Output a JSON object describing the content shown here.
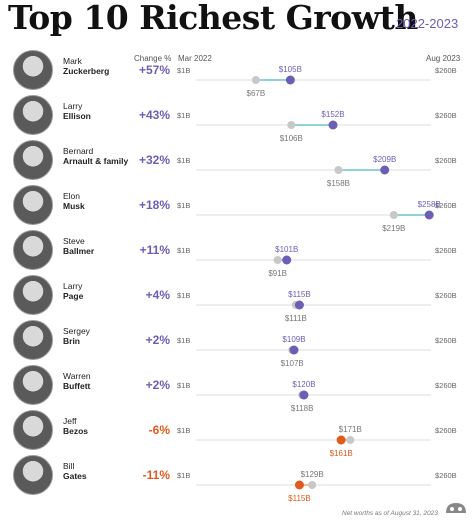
{
  "header": {
    "title": "Top 10 Richest Growth",
    "years": "2022-2023",
    "col_change": "Change %",
    "col_start": "Mar 2022",
    "col_end": "Aug 2023"
  },
  "axis_labels": {
    "min": "$1B",
    "max": "$260B"
  },
  "footer": "Net worths as of August 31, 2023",
  "colors": {
    "positive": "#6b5fb5",
    "negative": "#e05a1e",
    "start": "#c8c8c8",
    "axis": "#dddddd"
  },
  "rows": [
    {
      "first": "Mark",
      "last": "Zuckerberg",
      "pct": "+57%",
      "sign": "pos",
      "start_label": "$67B",
      "end_label": "$105B"
    },
    {
      "first": "Larry",
      "last": "Ellison",
      "pct": "+43%",
      "sign": "pos",
      "start_label": "$106B",
      "end_label": "$152B"
    },
    {
      "first": "Bernard",
      "last": "Arnault & family",
      "pct": "+32%",
      "sign": "pos",
      "start_label": "$158B",
      "end_label": "$209B"
    },
    {
      "first": "Elon",
      "last": "Musk",
      "pct": "+18%",
      "sign": "pos",
      "start_label": "$219B",
      "end_label": "$258B"
    },
    {
      "first": "Steve",
      "last": "Ballmer",
      "pct": "+11%",
      "sign": "pos",
      "start_label": "$91B",
      "end_label": "$101B"
    },
    {
      "first": "Larry",
      "last": "Page",
      "pct": "+4%",
      "sign": "pos",
      "start_label": "$111B",
      "end_label": "$115B"
    },
    {
      "first": "Sergey",
      "last": "Brin",
      "pct": "+2%",
      "sign": "pos",
      "start_label": "$107B",
      "end_label": "$109B"
    },
    {
      "first": "Warren",
      "last": "Buffett",
      "pct": "+2%",
      "sign": "pos",
      "start_label": "$118B",
      "end_label": "$120B"
    },
    {
      "first": "Jeff",
      "last": "Bezos",
      "pct": "-6%",
      "sign": "neg",
      "start_label": "$171B",
      "end_label": "$161B"
    },
    {
      "first": "Bill",
      "last": "Gates",
      "pct": "-11%",
      "sign": "neg",
      "start_label": "$129B",
      "end_label": "$115B"
    }
  ],
  "chart_data": {
    "type": "dumbbell",
    "title": "Top 10 Richest Growth",
    "subtitle": "2022-2023",
    "xlim": [
      1,
      260
    ],
    "unit": "$B",
    "series": [
      {
        "name": "Mar 2022",
        "values": [
          67,
          106,
          158,
          219,
          91,
          111,
          107,
          118,
          171,
          129
        ]
      },
      {
        "name": "Aug 2023",
        "values": [
          105,
          152,
          209,
          258,
          101,
          115,
          109,
          120,
          161,
          115
        ]
      }
    ],
    "categories": [
      "Mark Zuckerberg",
      "Larry Ellison",
      "Bernard Arnault & family",
      "Elon Musk",
      "Steve Ballmer",
      "Larry Page",
      "Sergey Brin",
      "Warren Buffett",
      "Jeff Bezos",
      "Bill Gates"
    ],
    "change_pct": [
      "+57%",
      "+43%",
      "+32%",
      "+18%",
      "+11%",
      "+4%",
      "+2%",
      "+2%",
      "-6%",
      "-11%"
    ]
  }
}
